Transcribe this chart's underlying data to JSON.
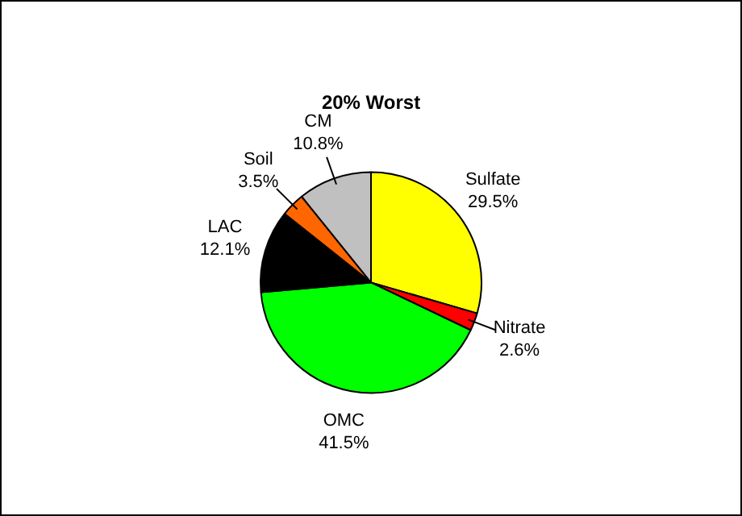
{
  "chart_data": {
    "type": "pie",
    "title": "20% Worst",
    "categories": [
      "Sulfate",
      "Nitrate",
      "OMC",
      "LAC",
      "Soil",
      "CM"
    ],
    "values": [
      29.5,
      2.6,
      41.5,
      12.1,
      3.5,
      10.8
    ],
    "value_labels": [
      "29.5%",
      "2.6%",
      "41.5%",
      "12.1%",
      "3.5%",
      "10.8%"
    ],
    "colors": [
      "#ffff00",
      "#ff0000",
      "#00ff00",
      "#000000",
      "#ff6600",
      "#c0c0c0"
    ],
    "legend": false
  }
}
